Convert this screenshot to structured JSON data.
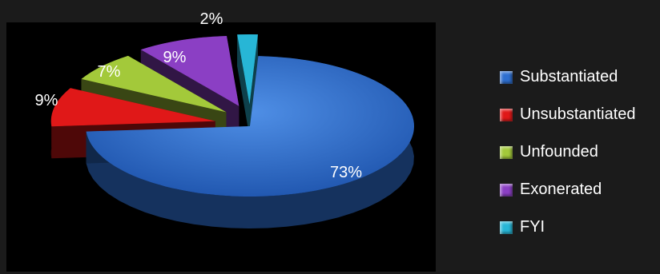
{
  "chart_data": {
    "type": "pie",
    "title": "",
    "categories": [
      "Substantiated",
      "Unsubstantiated",
      "Unfounded",
      "Exonerated",
      "FYI"
    ],
    "values": [
      73,
      9,
      7,
      9,
      2
    ],
    "labels": [
      "73%",
      "9%",
      "7%",
      "9%",
      "2%"
    ],
    "colors": [
      "#2e6fd0",
      "#e01818",
      "#a3c93a",
      "#8b3fc4",
      "#27b6d6"
    ],
    "legend_position": "right",
    "style": "3d-exploded"
  }
}
